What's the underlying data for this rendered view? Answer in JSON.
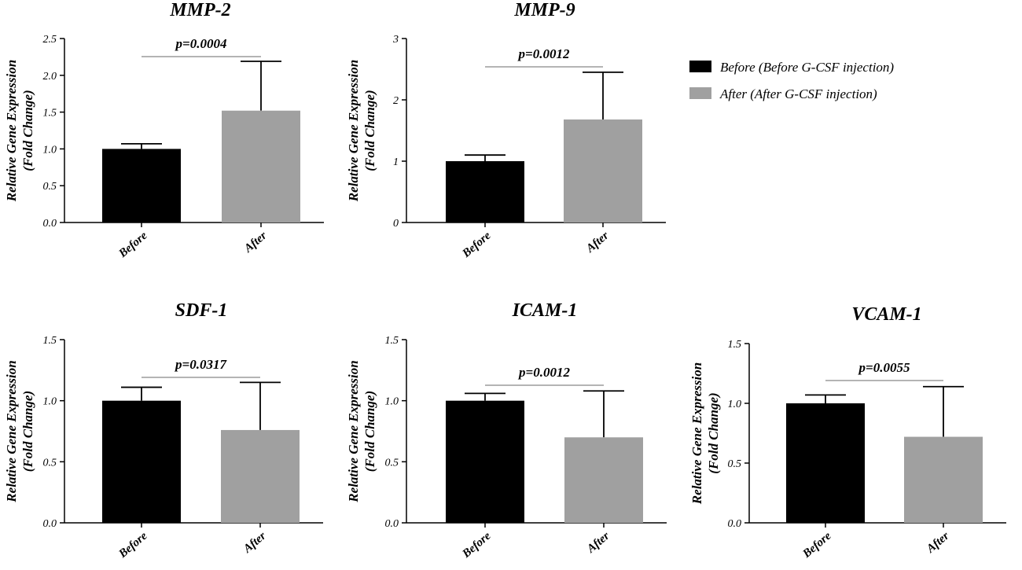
{
  "legend": [
    {
      "label": "Before (Before G-CSF injection)",
      "color": "#000000"
    },
    {
      "label": "After (After G-CSF injection)",
      "color": "#a0a0a0"
    }
  ],
  "chart_data": [
    {
      "type": "bar",
      "title": "MMP-2",
      "ylabel": [
        "Relative Gene Expression",
        "(Fold Change)"
      ],
      "categories": [
        "Before",
        "After"
      ],
      "values": [
        1.0,
        1.52
      ],
      "errors": [
        0.07,
        0.67
      ],
      "ylim": [
        0,
        2.5
      ],
      "yticks": [
        "0.0",
        "0.5",
        "1.0",
        "1.5",
        "2.0",
        "2.5"
      ],
      "pvalue": "p=0.0004",
      "colors": [
        "#000000",
        "#a0a0a0"
      ]
    },
    {
      "type": "bar",
      "title": "MMP-9",
      "ylabel": [
        "Relative Gene Expression",
        "(Fold Change)"
      ],
      "categories": [
        "Before",
        "After"
      ],
      "values": [
        1.0,
        1.68
      ],
      "errors": [
        0.1,
        0.77
      ],
      "ylim": [
        0,
        3
      ],
      "yticks": [
        "0",
        "1",
        "2",
        "3"
      ],
      "pvalue": "p=0.0012",
      "colors": [
        "#000000",
        "#a0a0a0"
      ]
    },
    {
      "type": "bar",
      "title": "SDF-1",
      "ylabel": [
        "Relative Gene Expression",
        "(Fold Change)"
      ],
      "categories": [
        "Before",
        "After"
      ],
      "values": [
        1.0,
        0.76
      ],
      "errors": [
        0.11,
        0.39
      ],
      "ylim": [
        0,
        1.5
      ],
      "yticks": [
        "0.0",
        "0.5",
        "1.0",
        "1.5"
      ],
      "pvalue": "p=0.0317",
      "colors": [
        "#000000",
        "#a0a0a0"
      ]
    },
    {
      "type": "bar",
      "title": "ICAM-1",
      "ylabel": [
        "Relative Gene Expression",
        "(Fold Change)"
      ],
      "categories": [
        "Before",
        "After"
      ],
      "values": [
        1.0,
        0.7
      ],
      "errors": [
        0.06,
        0.38
      ],
      "ylim": [
        0,
        1.5
      ],
      "yticks": [
        "0.0",
        "0.5",
        "1.0",
        "1.5"
      ],
      "pvalue": "p=0.0012",
      "colors": [
        "#000000",
        "#a0a0a0"
      ]
    },
    {
      "type": "bar",
      "title": "VCAM-1",
      "ylabel": [
        "Relative Gene Expression",
        "(Fold Change)"
      ],
      "categories": [
        "Before",
        "After"
      ],
      "values": [
        1.0,
        0.72
      ],
      "errors": [
        0.07,
        0.42
      ],
      "ylim": [
        0,
        1.5
      ],
      "yticks": [
        "0.0",
        "0.5",
        "1.0",
        "1.5"
      ],
      "pvalue": "p=0.0055",
      "colors": [
        "#000000",
        "#a0a0a0"
      ]
    }
  ]
}
